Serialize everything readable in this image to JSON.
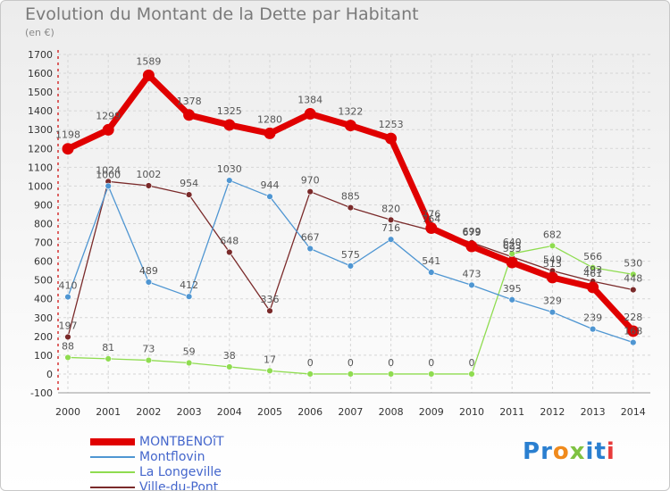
{
  "title": "Evolution du Montant de la Dette par Habitant",
  "subtitle": "(en €)",
  "chart_data": {
    "type": "line",
    "title": "Evolution du Montant de la Dette par Habitant",
    "subtitle": "(en €)",
    "x": [
      "2000",
      "2001",
      "2002",
      "2003",
      "2004",
      "2005",
      "2006",
      "2007",
      "2008",
      "2009",
      "2010",
      "2011",
      "2012",
      "2013",
      "2014"
    ],
    "yticks": [
      "-100",
      "0",
      "100",
      "200",
      "300",
      "400",
      "500",
      "600",
      "700",
      "800",
      "900",
      "1000",
      "1100",
      "1200",
      "1300",
      "1400",
      "1500",
      "1600",
      "1700"
    ],
    "ylim": [
      -100,
      1700
    ],
    "grid": true,
    "legend_position": "bottom-left",
    "series": [
      {
        "name": "MONTBENOîT",
        "color": "#e00000",
        "values": [
          1198,
          1299,
          1589,
          1378,
          1325,
          1280,
          1384,
          1322,
          1253,
          776,
          679,
          593,
          513,
          461,
          228
        ],
        "labels": [
          "1198",
          "1299",
          "1589",
          "1378",
          "1325",
          "1280",
          "1384",
          "1322",
          "1253",
          "776",
          "679",
          "593",
          "513",
          "461",
          "228"
        ]
      },
      {
        "name": "Montflovin",
        "color": "#4f96d2",
        "values": [
          410,
          1000,
          489,
          412,
          1030,
          944,
          667,
          575,
          716,
          541,
          473,
          395,
          329,
          239,
          168
        ],
        "labels": [
          "410",
          "1000",
          "489",
          "412",
          "1030",
          "944",
          "667",
          "575",
          "716",
          "541",
          "473",
          "395",
          "329",
          "239",
          "168"
        ]
      },
      {
        "name": "La Longeville",
        "color": "#8fdc50",
        "values": [
          88,
          81,
          73,
          59,
          38,
          17,
          0,
          0,
          0,
          0,
          0,
          640,
          682,
          566,
          530
        ],
        "labels": [
          "88",
          "81",
          "73",
          "59",
          "38",
          "17",
          "0",
          "0",
          "0",
          "0",
          "0",
          "640",
          "682",
          "566",
          "530"
        ]
      },
      {
        "name": "Ville-du-Pont",
        "color": "#7a2a2a",
        "values": [
          197,
          1024,
          1002,
          954,
          648,
          336,
          970,
          885,
          820,
          764,
          699,
          623,
          549,
          493,
          448
        ],
        "labels": [
          "197",
          "1024",
          "1002",
          "954",
          "648",
          "336",
          "970",
          "885",
          "820",
          "764",
          "699",
          "623",
          "549",
          "493",
          "448"
        ]
      }
    ]
  },
  "logo": {
    "text": "Proxiti",
    "letters": [
      "P",
      "r",
      "o",
      "x",
      "i",
      "t",
      "i"
    ],
    "colors": [
      "#2a7fd0",
      "#2a7fd0",
      "#f08a1c",
      "#7fc242",
      "#2a7fd0",
      "#2a7fd0",
      "#e83b3b"
    ]
  }
}
